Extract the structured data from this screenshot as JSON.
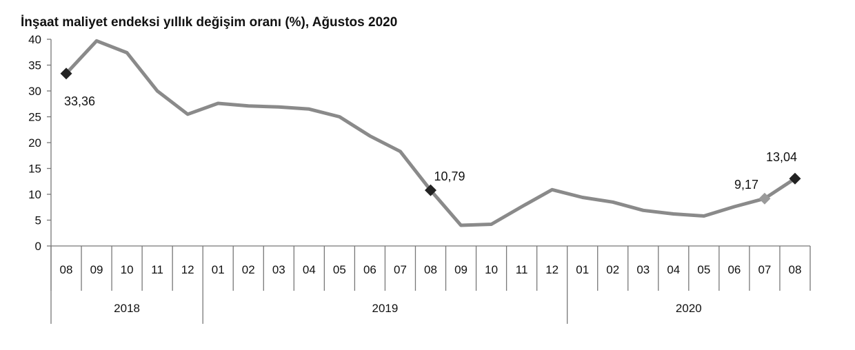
{
  "chart_data": {
    "type": "line",
    "title": "İnşaat maliyet endeksi yıllık değişim oranı (%), Ağustos 2020",
    "ylim": [
      0,
      40
    ],
    "yticks": [
      "0",
      "5",
      "10",
      "15",
      "20",
      "25",
      "30",
      "35",
      "40"
    ],
    "categories": [
      "08",
      "09",
      "10",
      "11",
      "12",
      "01",
      "02",
      "03",
      "04",
      "05",
      "06",
      "07",
      "08",
      "09",
      "10",
      "11",
      "12",
      "01",
      "02",
      "03",
      "04",
      "05",
      "06",
      "07",
      "08"
    ],
    "years": [
      {
        "label": "2018",
        "start": 0,
        "end": 4
      },
      {
        "label": "2019",
        "start": 5,
        "end": 16
      },
      {
        "label": "2020",
        "start": 17,
        "end": 24
      }
    ],
    "values": [
      33.36,
      39.7,
      37.4,
      30.0,
      25.5,
      27.6,
      27.1,
      26.9,
      26.5,
      25.0,
      21.3,
      18.3,
      10.79,
      4.0,
      4.2,
      7.6,
      10.9,
      9.4,
      8.5,
      6.9,
      6.2,
      5.8,
      7.6,
      9.17,
      13.04
    ],
    "markers": [
      {
        "index": 0,
        "label": "33,36",
        "color": "#222222"
      },
      {
        "index": 12,
        "label": "10,79",
        "color": "#222222"
      },
      {
        "index": 23,
        "label": "9,17",
        "color": "#9a9a9a"
      },
      {
        "index": 24,
        "label": "13,04",
        "color": "#222222"
      }
    ],
    "line_color": "#8a8a8a",
    "grid": false
  }
}
